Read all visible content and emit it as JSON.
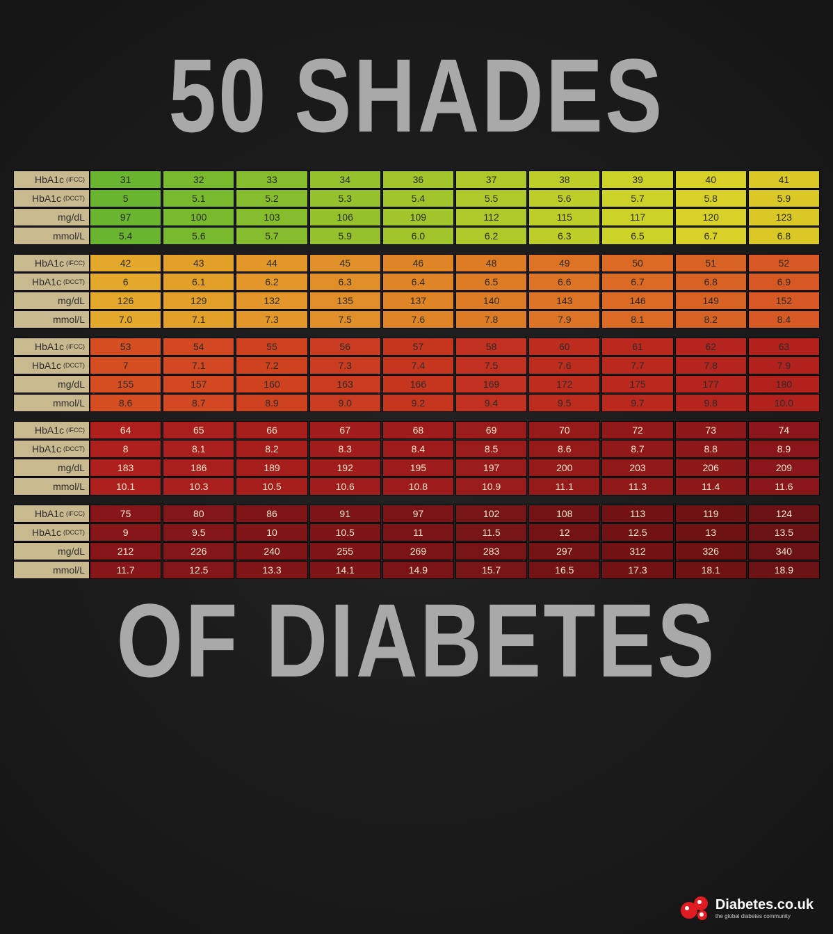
{
  "title_top": "50 SHADES",
  "title_bottom": "OF DIABETES",
  "row_labels": [
    {
      "main": "HbA1c",
      "sub": "(IFCC)"
    },
    {
      "main": "HbA1c",
      "sub": "(DCCT)"
    },
    {
      "main": "mg/dL",
      "sub": ""
    },
    {
      "main": "mmol/L",
      "sub": ""
    }
  ],
  "label_bg": "#c9b98f",
  "blocks": [
    {
      "colors": [
        "#6ab52f",
        "#78b92e",
        "#86bd2d",
        "#94c12c",
        "#a2c52b",
        "#b0c92a",
        "#bece29",
        "#ccd228",
        "#d8d127",
        "#d9c826"
      ],
      "text_light": false,
      "rows": [
        [
          "31",
          "32",
          "33",
          "34",
          "36",
          "37",
          "38",
          "39",
          "40",
          "41"
        ],
        [
          "5",
          "5.1",
          "5.2",
          "5.3",
          "5.4",
          "5.5",
          "5.6",
          "5.7",
          "5.8",
          "5.9"
        ],
        [
          "97",
          "100",
          "103",
          "106",
          "109",
          "112",
          "115",
          "117",
          "120",
          "123"
        ],
        [
          "5.4",
          "5.6",
          "5.7",
          "5.9",
          "6.0",
          "6.2",
          "6.3",
          "6.5",
          "6.7",
          "6.8"
        ]
      ]
    },
    {
      "colors": [
        "#e4a92a",
        "#e3a029",
        "#e29728",
        "#e08e27",
        "#df8526",
        "#de7c26",
        "#dc7325",
        "#da6a24",
        "#d86124",
        "#d65823"
      ],
      "text_light": false,
      "rows": [
        [
          "42",
          "43",
          "44",
          "45",
          "46",
          "48",
          "49",
          "50",
          "51",
          "52"
        ],
        [
          "6",
          "6.1",
          "6.2",
          "6.3",
          "6.4",
          "6.5",
          "6.6",
          "6.7",
          "6.8",
          "6.9"
        ],
        [
          "126",
          "129",
          "132",
          "135",
          "137",
          "140",
          "143",
          "146",
          "149",
          "152"
        ],
        [
          "7.0",
          "7.1",
          "7.3",
          "7.5",
          "7.6",
          "7.8",
          "7.9",
          "8.1",
          "8.2",
          "8.4"
        ]
      ]
    },
    {
      "colors": [
        "#d44e22",
        "#d14821",
        "#ce4220",
        "#ca3c20",
        "#c6361f",
        "#c2311f",
        "#be2c1e",
        "#ba281e",
        "#b6251d",
        "#b2221d"
      ],
      "text_light": false,
      "rows": [
        [
          "53",
          "54",
          "55",
          "56",
          "57",
          "58",
          "60",
          "61",
          "62",
          "63"
        ],
        [
          "7",
          "7.1",
          "7.2",
          "7.3",
          "7.4",
          "7.5",
          "7.6",
          "7.7",
          "7.8",
          "7.9"
        ],
        [
          "155",
          "157",
          "160",
          "163",
          "166",
          "169",
          "172",
          "175",
          "177",
          "180"
        ],
        [
          "8.6",
          "8.7",
          "8.9",
          "9.0",
          "9.2",
          "9.4",
          "9.5",
          "9.7",
          "9.8",
          "10.0"
        ]
      ]
    },
    {
      "colors": [
        "#ad201d",
        "#a91f1d",
        "#a51e1c",
        "#a11d1c",
        "#9d1c1b",
        "#991b1b",
        "#951a1a",
        "#91191a",
        "#8d1819",
        "#891719"
      ],
      "text_light": true,
      "rows": [
        [
          "64",
          "65",
          "66",
          "67",
          "68",
          "69",
          "70",
          "72",
          "73",
          "74"
        ],
        [
          "8",
          "8.1",
          "8.2",
          "8.3",
          "8.4",
          "8.5",
          "8.6",
          "8.7",
          "8.8",
          "8.9"
        ],
        [
          "183",
          "186",
          "189",
          "192",
          "195",
          "197",
          "200",
          "203",
          "206",
          "209"
        ],
        [
          "10.1",
          "10.3",
          "10.5",
          "10.6",
          "10.8",
          "10.9",
          "11.1",
          "11.3",
          "11.4",
          "11.6"
        ]
      ]
    },
    {
      "colors": [
        "#861618",
        "#831618",
        "#801517",
        "#7d1517",
        "#7a1416",
        "#771416",
        "#741315",
        "#711315",
        "#6e1214",
        "#6b1214"
      ],
      "text_light": true,
      "rows": [
        [
          "75",
          "80",
          "86",
          "91",
          "97",
          "102",
          "108",
          "113",
          "119",
          "124"
        ],
        [
          "9",
          "9.5",
          "10",
          "10.5",
          "11",
          "11.5",
          "12",
          "12.5",
          "13",
          "13.5"
        ],
        [
          "212",
          "226",
          "240",
          "255",
          "269",
          "283",
          "297",
          "312",
          "326",
          "340"
        ],
        [
          "11.7",
          "12.5",
          "13.3",
          "14.1",
          "14.9",
          "15.7",
          "16.5",
          "17.3",
          "18.1",
          "18.9"
        ]
      ]
    }
  ],
  "footer": {
    "brand": "Diabetes.co.uk",
    "tagline": "the global diabetes community",
    "logo_color": "#e11b22"
  }
}
